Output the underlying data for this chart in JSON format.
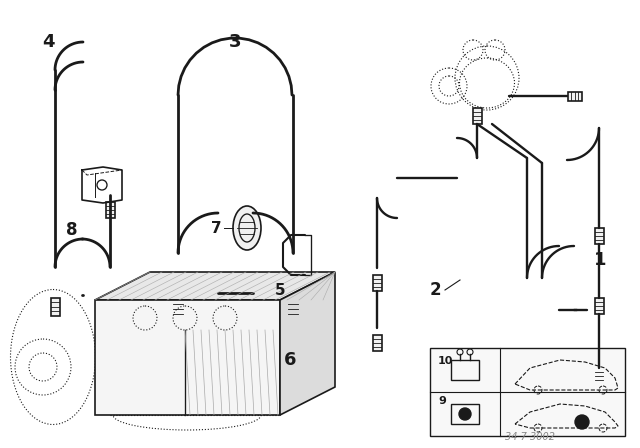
{
  "bg_color": "#ffffff",
  "line_color": "#1a1a1a",
  "watermark": "34 7 3002",
  "fig_width": 6.4,
  "fig_height": 4.48,
  "dpi": 100,
  "pipe_lw": 2.0,
  "fitting_lw": 1.2
}
